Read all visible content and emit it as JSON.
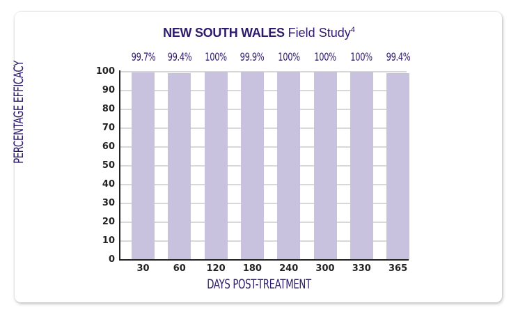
{
  "title": {
    "bold": "NEW SOUTH WALES",
    "light": "Field Study",
    "superscript": "4"
  },
  "colors": {
    "title": "#2e1a6b",
    "bar": "#c9c2de",
    "grid": "#d8d8d8",
    "axis": "#222222"
  },
  "chart_data": {
    "type": "bar",
    "title": "NEW SOUTH WALES Field Study4",
    "xlabel": "DAYS POST-TREATMENT",
    "ylabel": "PERCENTAGE EFFICACY",
    "categories": [
      "30",
      "60",
      "120",
      "180",
      "240",
      "300",
      "330",
      "365"
    ],
    "values": [
      99.7,
      99.4,
      100,
      99.9,
      100,
      100,
      100,
      99.4
    ],
    "data_labels": [
      "99.7%",
      "99.4%",
      "100%",
      "99.9%",
      "100%",
      "100%",
      "100%",
      "99.4%"
    ],
    "ylim": [
      0,
      100
    ],
    "yticks": [
      "0",
      "10",
      "20",
      "30",
      "40",
      "50",
      "60",
      "70",
      "80",
      "90",
      "100"
    ],
    "grid": true,
    "legend": null
  }
}
